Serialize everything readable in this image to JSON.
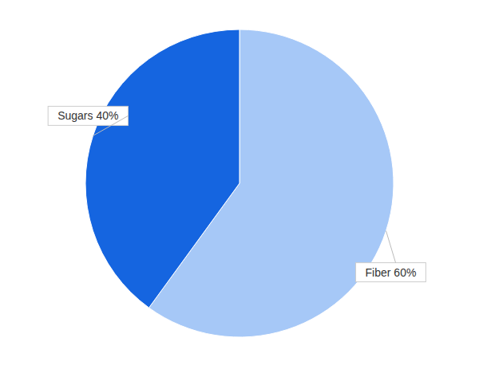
{
  "chart_data": {
    "type": "pie",
    "categories": [
      "Fiber",
      "Sugars"
    ],
    "values": [
      60,
      40
    ],
    "value_labels": [
      "60%",
      "40%"
    ],
    "colors": [
      "#a6c8f7",
      "#1565e0"
    ],
    "data_labels": true
  }
}
